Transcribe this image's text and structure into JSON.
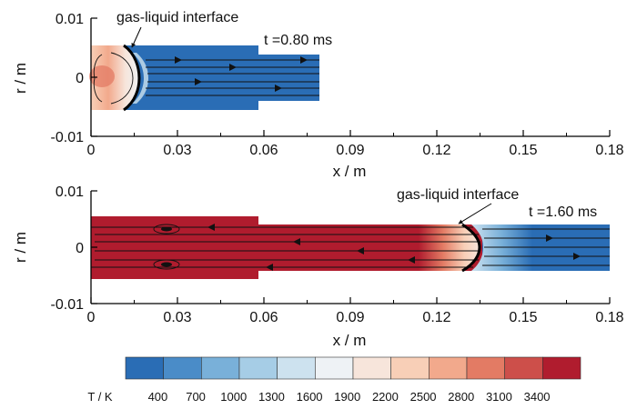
{
  "chart_data": [
    {
      "type": "heatmap",
      "time_label": "t =0.80 ms",
      "annotation": "gas-liquid interface",
      "xlabel": "x / m",
      "ylabel": "r / m",
      "xlim": [
        0,
        0.18
      ],
      "ylim": [
        -0.01,
        0.01
      ],
      "x_ticks": [
        "0",
        "0.03",
        "0.06",
        "0.09",
        "0.12",
        "0.15",
        "0.18"
      ],
      "y_ticks": [
        "0.01",
        "0",
        "-0.01"
      ],
      "interface_x": 0.015,
      "burned_gas_region": [
        0,
        0.015
      ],
      "unburned_region": [
        0.015,
        0.079
      ],
      "domain": {
        "step_x": 0.058,
        "end_x": 0.079,
        "r_wide": 0.0054,
        "r_narrow": 0.0038
      }
    },
    {
      "type": "heatmap",
      "time_label": "t =1.60 ms",
      "annotation": "gas-liquid interface",
      "xlabel": "x / m",
      "ylabel": "r / m",
      "xlim": [
        0,
        0.18
      ],
      "ylim": [
        -0.01,
        0.01
      ],
      "x_ticks": [
        "0",
        "0.03",
        "0.06",
        "0.09",
        "0.12",
        "0.15",
        "0.18"
      ],
      "y_ticks": [
        "0.01",
        "0",
        "-0.01"
      ],
      "interface_x": 0.131,
      "burned_gas_region": [
        0,
        0.131
      ],
      "unburned_region": [
        0.131,
        0.18
      ],
      "vortex_x": 0.027,
      "domain": {
        "step_x": 0.058,
        "end_x": 0.18,
        "r_wide": 0.0054,
        "r_narrow": 0.0038
      }
    }
  ],
  "colorbar": {
    "title": "T / K",
    "levels": [
      "400",
      "700",
      "1000",
      "1300",
      "1600",
      "1900",
      "2200",
      "2500",
      "2800",
      "3100",
      "3400"
    ],
    "colors": [
      "#2a6db5",
      "#4a8cc8",
      "#79b0d9",
      "#a6cde6",
      "#cde2ef",
      "#eef2f5",
      "#f7e5db",
      "#f8cfb7",
      "#f2a98c",
      "#e37b64",
      "#cd4f4a",
      "#b01c2e"
    ]
  },
  "colors": {
    "hot": "#b01c2e",
    "cold": "#2a6db5",
    "interface": "#000000"
  }
}
